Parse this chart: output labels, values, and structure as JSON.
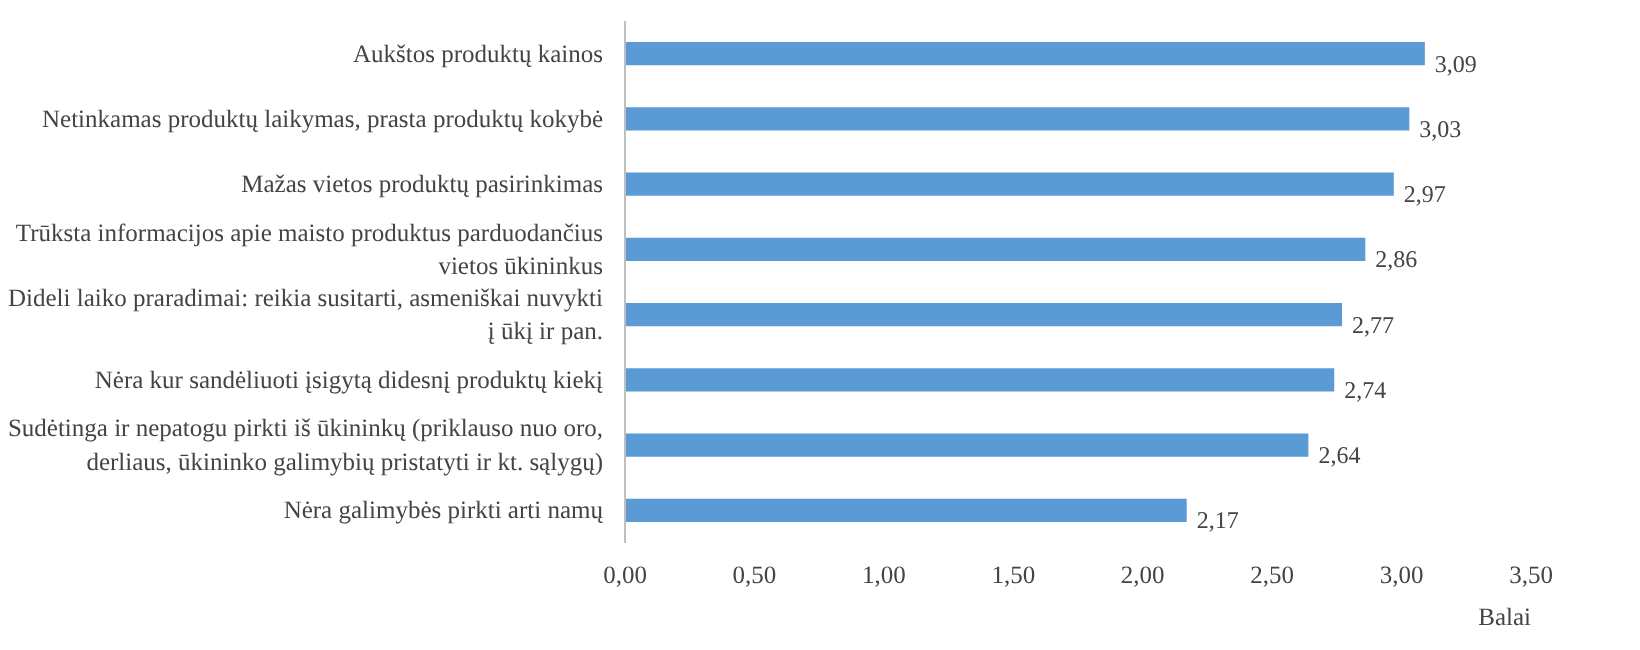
{
  "chart_data": {
    "type": "bar",
    "orientation": "horizontal",
    "xlabel": "Balai",
    "categories": [
      "Aukštos produktų kainos",
      "Netinkamas produktų laikymas, prasta produktų kokybė",
      "Mažas vietos produktų pasirinkimas",
      "Trūksta informacijos apie maisto produktus parduodančius vietos ūkininkus",
      "Dideli laiko praradimai: reikia susitarti, asmeniškai nuvykti į ūkį ir pan.",
      "Nėra kur sandėliuoti įsigytą didesnį produktų kiekį",
      "Sudėtinga ir nepatogu pirkti iš ūkininkų (priklauso nuo oro, derliaus, ūkininko galimybių pristatyti ir kt. sąlygų)",
      "Nėra galimybės pirkti arti namų"
    ],
    "values": [
      3.09,
      3.03,
      2.97,
      2.86,
      2.77,
      2.74,
      2.64,
      2.17
    ],
    "value_labels": [
      "3,09",
      "3,03",
      "2,97",
      "2,86",
      "2,77",
      "2,74",
      "2,64",
      "2,17"
    ],
    "color": "#5b9bd5",
    "xlim": [
      0,
      3.5
    ],
    "xticks": [
      {
        "value": 0,
        "label": "0,00"
      },
      {
        "value": 0.5,
        "label": "0,50"
      },
      {
        "value": 1,
        "label": "1,00"
      },
      {
        "value": 1.5,
        "label": "1,50"
      },
      {
        "value": 2,
        "label": "2,00"
      },
      {
        "value": 2.5,
        "label": "2,50"
      },
      {
        "value": 3,
        "label": "3,00"
      },
      {
        "value": 3.5,
        "label": "3,50"
      }
    ],
    "grid": false
  }
}
